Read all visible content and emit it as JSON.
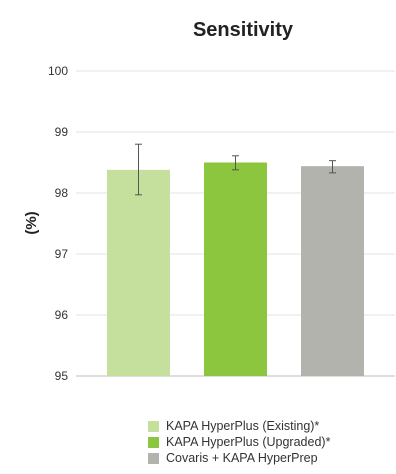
{
  "chart_data": {
    "type": "bar",
    "title": "Sensitivity",
    "ylabel": "(%)",
    "xlabel": "",
    "ylim": [
      95,
      100
    ],
    "yticks": [
      95,
      96,
      97,
      98,
      99,
      100
    ],
    "grid": true,
    "legend_position": "bottom",
    "series": [
      {
        "name": "KAPA HyperPlus (Existing)*",
        "value": 98.38,
        "error_low": 97.97,
        "error_high": 98.8,
        "color": "#c5e09c"
      },
      {
        "name": "KAPA HyperPlus (Upgraded)*",
        "value": 98.5,
        "error_low": 98.38,
        "error_high": 98.61,
        "color": "#8cc63f"
      },
      {
        "name": "Covaris + KAPA HyperPrep",
        "value": 98.44,
        "error_low": 98.33,
        "error_high": 98.53,
        "color": "#b3b3ad"
      }
    ]
  }
}
